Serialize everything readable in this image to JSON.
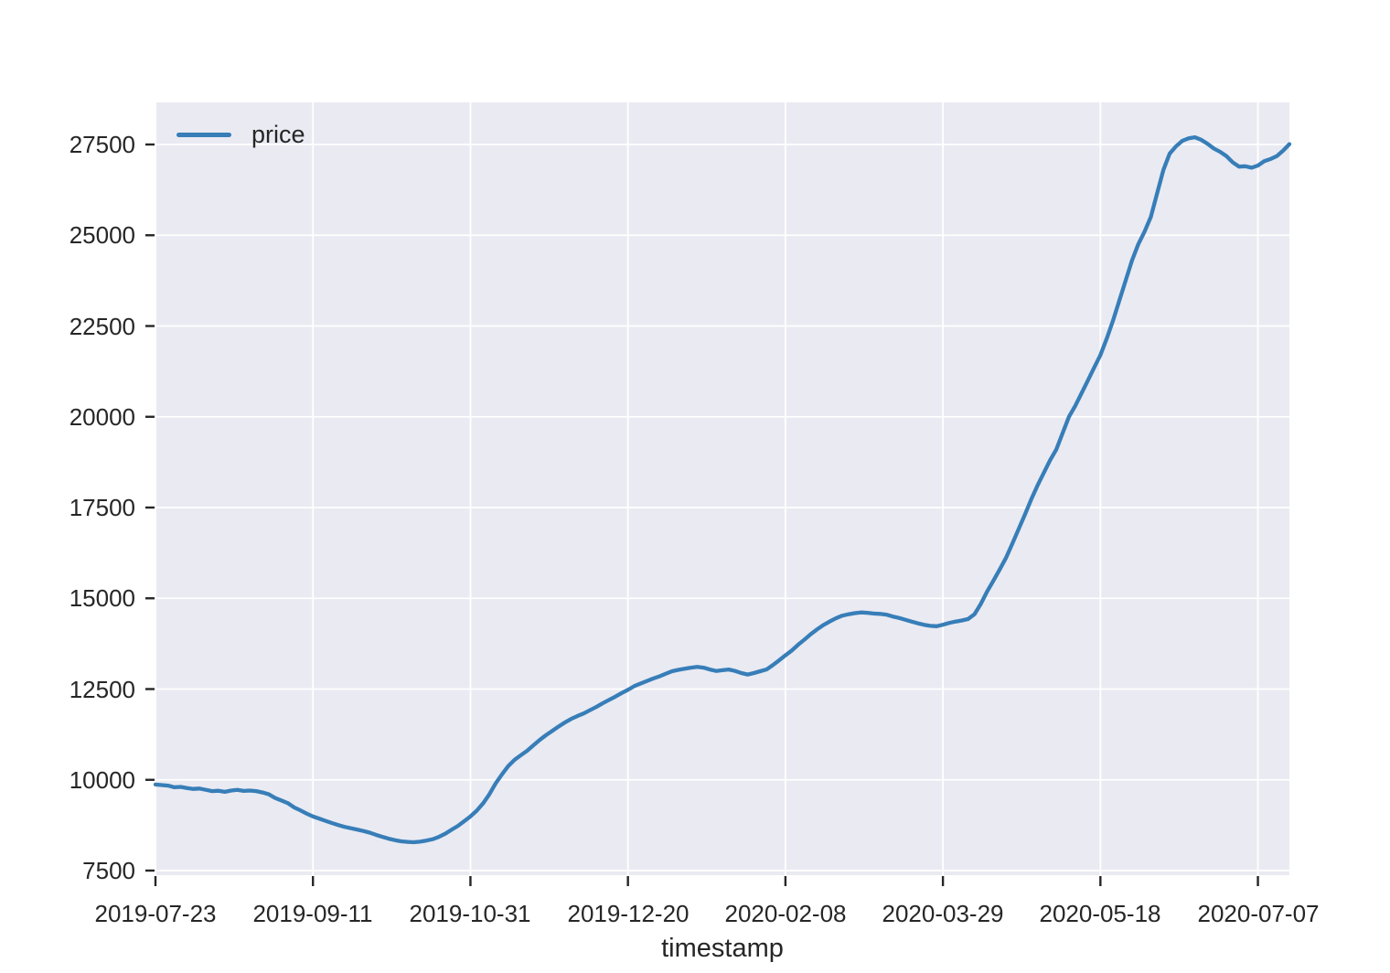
{
  "chart_data": {
    "type": "line",
    "title": "",
    "xlabel": "timestamp",
    "ylabel": "",
    "legend": [
      "price"
    ],
    "legend_position": "upper-left",
    "grid": true,
    "colors": {
      "plot_background": "#eaeaf2",
      "grid_line": "#ffffff",
      "tick_text": "#262626",
      "series_line": "#377eb8"
    },
    "x_tick_labels": [
      "2019-07-23",
      "2019-09-11",
      "2019-10-31",
      "2019-12-20",
      "2020-02-08",
      "2020-03-29",
      "2020-05-18",
      "2020-07-07"
    ],
    "x_tick_days": [
      0,
      50,
      100,
      150,
      200,
      250,
      300,
      350
    ],
    "xlim_days": [
      0,
      360
    ],
    "y_ticks": [
      7500,
      10000,
      12500,
      15000,
      17500,
      20000,
      22500,
      25000,
      27500
    ],
    "ylim": [
      7374,
      28659
    ],
    "series": [
      {
        "name": "price",
        "x_unit": "days since 2019-07-23",
        "points": [
          [
            0,
            9870
          ],
          [
            2,
            9855
          ],
          [
            4,
            9840
          ],
          [
            6,
            9795
          ],
          [
            8,
            9805
          ],
          [
            10,
            9775
          ],
          [
            12,
            9750
          ],
          [
            14,
            9760
          ],
          [
            16,
            9725
          ],
          [
            18,
            9690
          ],
          [
            20,
            9700
          ],
          [
            22,
            9670
          ],
          [
            24,
            9705
          ],
          [
            26,
            9725
          ],
          [
            28,
            9695
          ],
          [
            30,
            9705
          ],
          [
            32,
            9690
          ],
          [
            34,
            9650
          ],
          [
            36,
            9600
          ],
          [
            38,
            9500
          ],
          [
            40,
            9430
          ],
          [
            42,
            9360
          ],
          [
            44,
            9240
          ],
          [
            46,
            9160
          ],
          [
            48,
            9070
          ],
          [
            50,
            8990
          ],
          [
            52,
            8930
          ],
          [
            54,
            8870
          ],
          [
            56,
            8810
          ],
          [
            58,
            8755
          ],
          [
            60,
            8705
          ],
          [
            62,
            8665
          ],
          [
            64,
            8630
          ],
          [
            66,
            8590
          ],
          [
            68,
            8545
          ],
          [
            70,
            8485
          ],
          [
            72,
            8430
          ],
          [
            74,
            8380
          ],
          [
            76,
            8340
          ],
          [
            78,
            8305
          ],
          [
            80,
            8290
          ],
          [
            82,
            8280
          ],
          [
            84,
            8295
          ],
          [
            86,
            8325
          ],
          [
            88,
            8365
          ],
          [
            90,
            8430
          ],
          [
            92,
            8515
          ],
          [
            94,
            8625
          ],
          [
            96,
            8730
          ],
          [
            98,
            8860
          ],
          [
            100,
            8990
          ],
          [
            102,
            9150
          ],
          [
            104,
            9350
          ],
          [
            106,
            9600
          ],
          [
            108,
            9900
          ],
          [
            110,
            10150
          ],
          [
            112,
            10380
          ],
          [
            114,
            10550
          ],
          [
            116,
            10680
          ],
          [
            118,
            10800
          ],
          [
            120,
            10950
          ],
          [
            122,
            11100
          ],
          [
            124,
            11230
          ],
          [
            126,
            11350
          ],
          [
            128,
            11470
          ],
          [
            130,
            11580
          ],
          [
            132,
            11680
          ],
          [
            134,
            11760
          ],
          [
            136,
            11830
          ],
          [
            138,
            11920
          ],
          [
            140,
            12010
          ],
          [
            142,
            12110
          ],
          [
            144,
            12200
          ],
          [
            146,
            12290
          ],
          [
            148,
            12390
          ],
          [
            150,
            12480
          ],
          [
            152,
            12580
          ],
          [
            154,
            12650
          ],
          [
            156,
            12720
          ],
          [
            158,
            12790
          ],
          [
            160,
            12850
          ],
          [
            162,
            12920
          ],
          [
            164,
            12990
          ],
          [
            166,
            13030
          ],
          [
            168,
            13060
          ],
          [
            170,
            13090
          ],
          [
            172,
            13110
          ],
          [
            174,
            13090
          ],
          [
            176,
            13040
          ],
          [
            178,
            13000
          ],
          [
            180,
            13020
          ],
          [
            182,
            13040
          ],
          [
            184,
            13000
          ],
          [
            186,
            12940
          ],
          [
            188,
            12900
          ],
          [
            190,
            12940
          ],
          [
            192,
            12990
          ],
          [
            194,
            13040
          ],
          [
            196,
            13160
          ],
          [
            198,
            13290
          ],
          [
            200,
            13430
          ],
          [
            202,
            13560
          ],
          [
            204,
            13720
          ],
          [
            206,
            13860
          ],
          [
            208,
            14010
          ],
          [
            210,
            14140
          ],
          [
            212,
            14260
          ],
          [
            214,
            14360
          ],
          [
            216,
            14450
          ],
          [
            218,
            14520
          ],
          [
            220,
            14560
          ],
          [
            222,
            14590
          ],
          [
            224,
            14610
          ],
          [
            226,
            14600
          ],
          [
            228,
            14580
          ],
          [
            230,
            14570
          ],
          [
            232,
            14550
          ],
          [
            234,
            14500
          ],
          [
            236,
            14460
          ],
          [
            238,
            14410
          ],
          [
            240,
            14360
          ],
          [
            242,
            14310
          ],
          [
            244,
            14270
          ],
          [
            246,
            14240
          ],
          [
            248,
            14230
          ],
          [
            250,
            14270
          ],
          [
            252,
            14320
          ],
          [
            254,
            14360
          ],
          [
            256,
            14390
          ],
          [
            258,
            14430
          ],
          [
            260,
            14560
          ],
          [
            262,
            14840
          ],
          [
            264,
            15180
          ],
          [
            266,
            15480
          ],
          [
            268,
            15790
          ],
          [
            270,
            16110
          ],
          [
            272,
            16500
          ],
          [
            274,
            16900
          ],
          [
            276,
            17300
          ],
          [
            278,
            17720
          ],
          [
            280,
            18100
          ],
          [
            282,
            18450
          ],
          [
            284,
            18800
          ],
          [
            286,
            19100
          ],
          [
            288,
            19550
          ],
          [
            290,
            20000
          ],
          [
            292,
            20300
          ],
          [
            294,
            20650
          ],
          [
            296,
            21000
          ],
          [
            298,
            21350
          ],
          [
            300,
            21700
          ],
          [
            302,
            22150
          ],
          [
            304,
            22650
          ],
          [
            306,
            23200
          ],
          [
            308,
            23750
          ],
          [
            310,
            24300
          ],
          [
            312,
            24750
          ],
          [
            314,
            25100
          ],
          [
            316,
            25500
          ],
          [
            318,
            26150
          ],
          [
            320,
            26800
          ],
          [
            322,
            27250
          ],
          [
            324,
            27450
          ],
          [
            326,
            27600
          ],
          [
            328,
            27670
          ],
          [
            330,
            27700
          ],
          [
            332,
            27630
          ],
          [
            334,
            27520
          ],
          [
            336,
            27390
          ],
          [
            338,
            27300
          ],
          [
            340,
            27180
          ],
          [
            342,
            27010
          ],
          [
            344,
            26890
          ],
          [
            346,
            26900
          ],
          [
            348,
            26860
          ],
          [
            350,
            26920
          ],
          [
            352,
            27040
          ],
          [
            354,
            27100
          ],
          [
            356,
            27180
          ],
          [
            358,
            27330
          ],
          [
            360,
            27510
          ]
        ]
      }
    ]
  }
}
